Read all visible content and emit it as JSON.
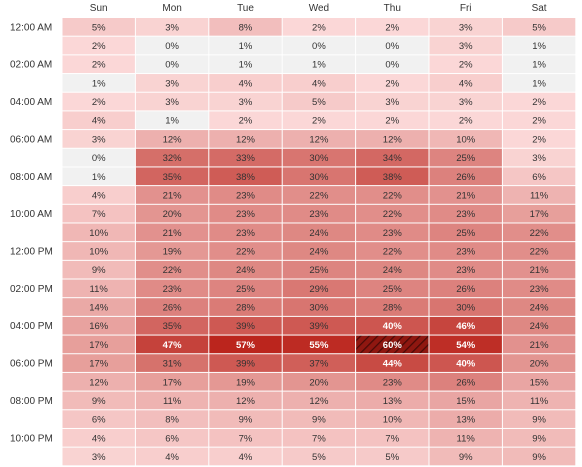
{
  "chart_data": {
    "type": "heatmap",
    "columns": [
      "Sun",
      "Mon",
      "Tue",
      "Wed",
      "Thu",
      "Fri",
      "Sat"
    ],
    "row_labels": [
      "12:00 AM",
      "",
      "02:00 AM",
      "",
      "04:00 AM",
      "",
      "06:00 AM",
      "",
      "08:00 AM",
      "",
      "10:00 AM",
      "",
      "12:00 PM",
      "",
      "02:00 PM",
      "",
      "04:00 PM",
      "",
      "06:00 PM",
      "",
      "08:00 PM",
      "",
      "10:00 PM",
      ""
    ],
    "unit": "%",
    "values": [
      [
        5,
        3,
        8,
        2,
        2,
        3,
        5
      ],
      [
        2,
        0,
        1,
        0,
        0,
        3,
        1
      ],
      [
        2,
        0,
        1,
        1,
        0,
        2,
        1
      ],
      [
        1,
        3,
        4,
        4,
        2,
        4,
        1
      ],
      [
        2,
        3,
        3,
        5,
        3,
        3,
        2
      ],
      [
        4,
        1,
        2,
        2,
        2,
        2,
        2
      ],
      [
        3,
        12,
        12,
        12,
        12,
        10,
        2
      ],
      [
        0,
        32,
        33,
        30,
        34,
        25,
        3
      ],
      [
        1,
        35,
        38,
        30,
        38,
        26,
        6
      ],
      [
        4,
        21,
        23,
        22,
        22,
        21,
        11
      ],
      [
        7,
        20,
        23,
        23,
        22,
        23,
        17
      ],
      [
        10,
        21,
        23,
        24,
        23,
        25,
        22
      ],
      [
        10,
        19,
        22,
        24,
        22,
        23,
        22
      ],
      [
        9,
        22,
        24,
        25,
        24,
        23,
        21
      ],
      [
        11,
        23,
        25,
        29,
        25,
        26,
        23
      ],
      [
        14,
        26,
        28,
        30,
        28,
        30,
        24
      ],
      [
        16,
        35,
        39,
        39,
        40,
        46,
        24
      ],
      [
        17,
        47,
        57,
        55,
        60,
        54,
        21
      ],
      [
        17,
        31,
        39,
        37,
        44,
        40,
        20
      ],
      [
        12,
        17,
        19,
        20,
        23,
        26,
        15
      ],
      [
        9,
        11,
        12,
        12,
        13,
        15,
        11
      ],
      [
        6,
        8,
        9,
        9,
        10,
        13,
        9
      ],
      [
        4,
        6,
        7,
        7,
        7,
        11,
        9
      ],
      [
        3,
        4,
        4,
        5,
        5,
        9,
        9
      ]
    ],
    "highlight": {
      "row": 17,
      "col": 4,
      "style": "hatched"
    },
    "colors": {
      "low": "#f1f1f1",
      "high": "#b81d14",
      "text_dark": "#333333",
      "text_light": "#ffffff",
      "grid": "#ffffff"
    }
  }
}
